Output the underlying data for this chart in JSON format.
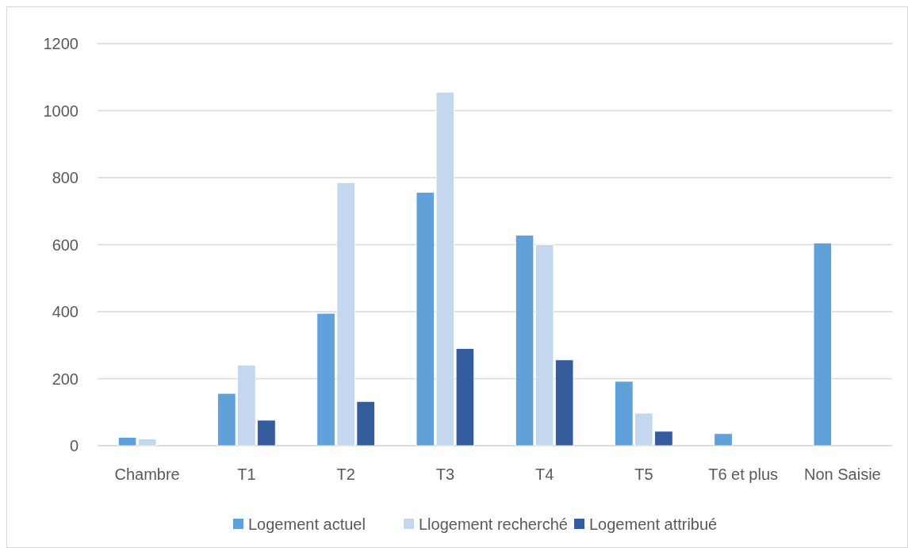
{
  "chart_data": {
    "type": "bar",
    "categories": [
      "Chambre",
      "T1",
      "T2",
      "T3",
      "T4",
      "T5",
      "T6 et plus",
      "Non Saisie"
    ],
    "series": [
      {
        "name": "Logement actuel",
        "color": "#5fa1d8",
        "values": [
          25,
          156,
          395,
          756,
          628,
          192,
          36,
          605
        ]
      },
      {
        "name": "Llogement recherché",
        "color": "#c3d8ee",
        "values": [
          20,
          240,
          785,
          1055,
          600,
          97,
          null,
          null
        ]
      },
      {
        "name": "Logement attribué",
        "color": "#345c9c",
        "values": [
          null,
          76,
          132,
          290,
          256,
          43,
          null,
          null
        ]
      }
    ],
    "ylim": [
      0,
      1200
    ],
    "yticks": [
      0,
      200,
      400,
      600,
      800,
      1000,
      1200
    ],
    "grid": "y",
    "legend": "bottom"
  }
}
